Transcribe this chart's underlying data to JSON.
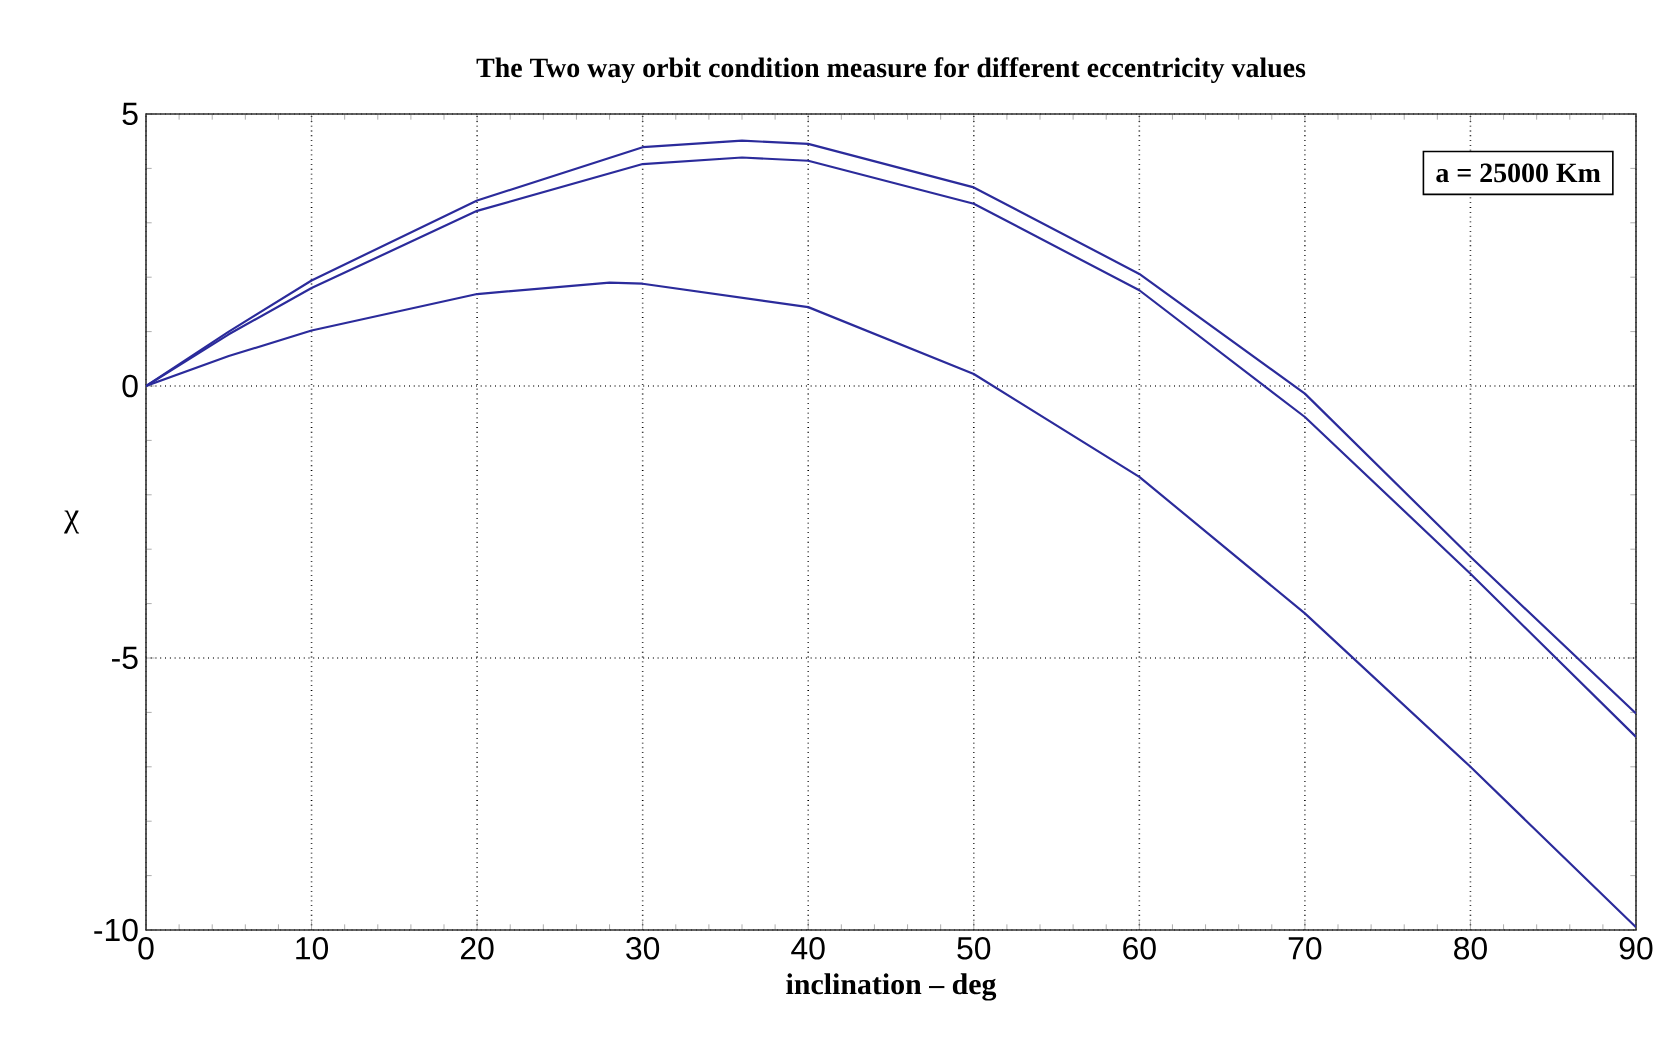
{
  "chart_data": {
    "type": "line",
    "title": "The Two way orbit condition measure for different eccentricity values",
    "xlabel": "inclination – deg",
    "ylabel": "χ",
    "annotations": [
      "a = 25000 Km"
    ],
    "xlim": [
      0,
      90
    ],
    "ylim": [
      -10,
      5
    ],
    "xticks": [
      0,
      10,
      20,
      30,
      40,
      50,
      60,
      70,
      80,
      90
    ],
    "yticks": [
      -10,
      -5,
      0,
      5
    ],
    "grid": true,
    "line_style": "solid",
    "marker": "none",
    "series": [
      {
        "color": "#2b2b9b",
        "x": [
          0,
          5,
          10,
          20,
          30,
          36,
          40,
          50,
          60,
          70,
          80,
          90
        ],
        "values": [
          0,
          1.0,
          1.94,
          3.41,
          4.39,
          4.51,
          4.45,
          3.65,
          2.06,
          -0.14,
          -3.14,
          -6.02
        ]
      },
      {
        "color": "#2b2b9b",
        "x": [
          0,
          5,
          10,
          20,
          30,
          36,
          40,
          50,
          60,
          70,
          80,
          90
        ],
        "values": [
          0,
          0.95,
          1.8,
          3.22,
          4.08,
          4.2,
          4.14,
          3.35,
          1.76,
          -0.57,
          -3.45,
          -6.45
        ]
      },
      {
        "color": "#2b2b9b",
        "x": [
          0,
          5,
          10,
          20,
          28,
          30,
          40,
          50,
          60,
          70,
          80,
          90
        ],
        "values": [
          0,
          0.55,
          1.02,
          1.69,
          1.9,
          1.88,
          1.45,
          0.22,
          -1.67,
          -4.18,
          -7.0,
          -9.95
        ]
      }
    ]
  }
}
